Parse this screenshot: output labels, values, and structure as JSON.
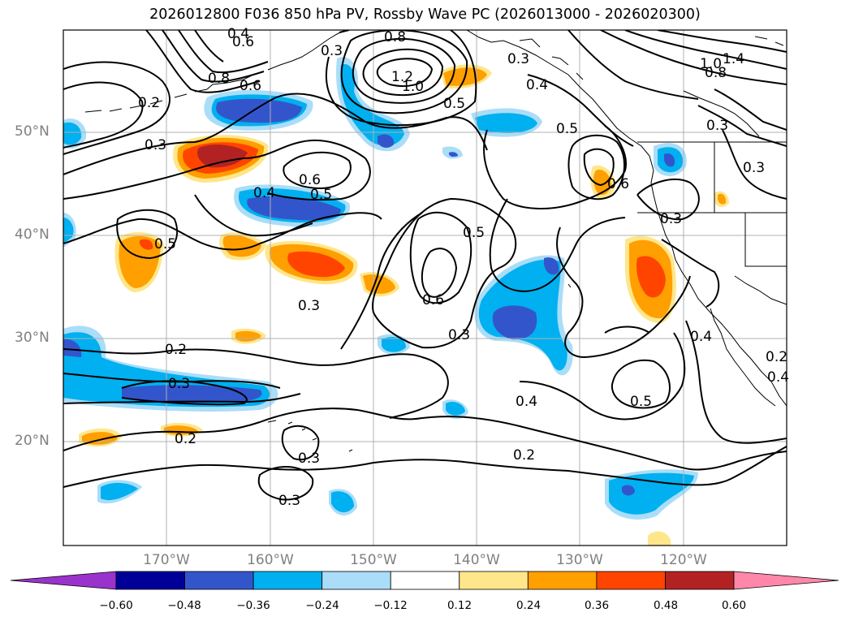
{
  "title": "2026012800 F036 850 hPa PV, Rossby Wave PC (2026013000 - 2026020300)",
  "latitude_labels": [
    "50°N",
    "40°N",
    "30°N",
    "20°N"
  ],
  "longitude_labels": [
    "170°W",
    "160°W",
    "150°W",
    "140°W",
    "130°W",
    "120°W"
  ],
  "colorbar": {
    "tick_labels": [
      "−0.60",
      "−0.48",
      "−0.36",
      "−0.24",
      "−0.12",
      "0.12",
      "0.24",
      "0.36",
      "0.48",
      "0.60"
    ],
    "colors": [
      "#9933cc",
      "#000099",
      "#3355cc",
      "#00b0f0",
      "#aaddf8",
      "#ffffff",
      "#ffe68a",
      "#ff9f00",
      "#ff4400",
      "#b22222",
      "#ff88aa"
    ]
  },
  "contour_labels": [
    {
      "text": "0.8"
    },
    {
      "text": "1.0"
    },
    {
      "text": "1.2"
    },
    {
      "text": "0.5"
    },
    {
      "text": "0.3"
    },
    {
      "text": "0.4"
    },
    {
      "text": "0.2"
    },
    {
      "text": "0.6"
    },
    {
      "text": "0.6"
    },
    {
      "text": "0.5"
    },
    {
      "text": "0.4"
    },
    {
      "text": "0.3"
    },
    {
      "text": "0.6"
    },
    {
      "text": "0.5"
    },
    {
      "text": "0.5"
    },
    {
      "text": "0.3"
    },
    {
      "text": "0.6"
    },
    {
      "text": "0.3"
    },
    {
      "text": "0.5"
    },
    {
      "text": "0.4"
    },
    {
      "text": "0.2"
    },
    {
      "text": "0.3"
    },
    {
      "text": "0.2"
    },
    {
      "text": "0.2"
    },
    {
      "text": "0.3"
    },
    {
      "text": "0.4"
    },
    {
      "text": "0.5"
    },
    {
      "text": "0.3"
    },
    {
      "text": "0.8"
    },
    {
      "text": "1.0"
    },
    {
      "text": "1.4"
    },
    {
      "text": "0.4"
    },
    {
      "text": "0.2"
    },
    {
      "text": "0.4"
    },
    {
      "text": "0.3"
    },
    {
      "text": "0.3"
    },
    {
      "text": "0.6"
    },
    {
      "text": "0.8"
    },
    {
      "text": "0.3"
    },
    {
      "text": "0.3"
    }
  ]
}
